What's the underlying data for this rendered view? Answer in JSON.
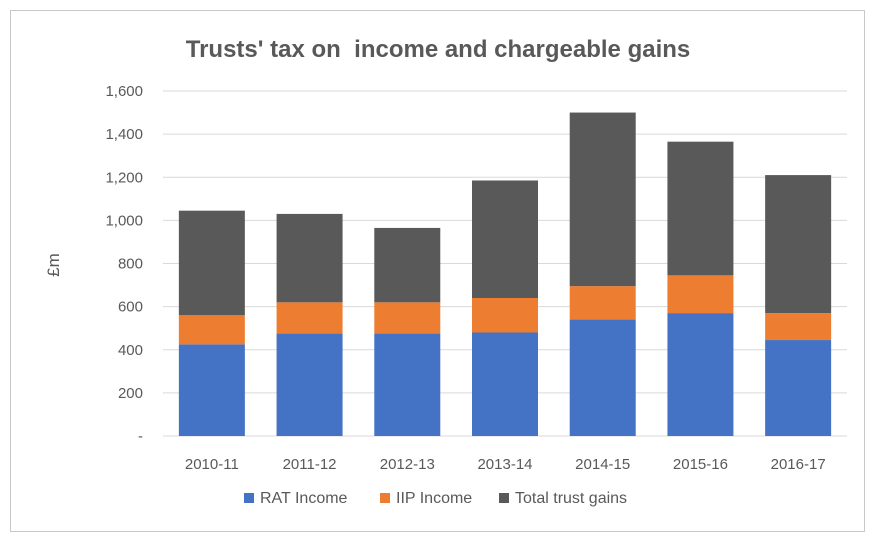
{
  "chart_data": {
    "type": "bar",
    "stacked": true,
    "title": "Trusts' tax on  income and chargeable gains",
    "xlabel": "",
    "ylabel": "£m",
    "ylim": [
      0,
      1600
    ],
    "ytick_values": [
      0,
      200,
      400,
      600,
      800,
      1000,
      1200,
      1400,
      1600
    ],
    "ytick_labels": [
      "-",
      "200",
      "400",
      "600",
      "800",
      "1,000",
      "1,200",
      "1,400",
      "1,600"
    ],
    "grid": true,
    "legend_position": "bottom",
    "categories": [
      "2010-11",
      "2011-12",
      "2012-13",
      "2013-14",
      "2014-15",
      "2015-16",
      "2016-17"
    ],
    "series": [
      {
        "name": "RAT Income",
        "color": "#4472c4",
        "values": [
          425,
          475,
          475,
          480,
          540,
          570,
          445
        ]
      },
      {
        "name": "IIP Income",
        "color": "#ed7d31",
        "values": [
          135,
          145,
          145,
          160,
          155,
          175,
          125
        ]
      },
      {
        "name": "Total trust gains",
        "color": "#595959",
        "values": [
          485,
          410,
          345,
          545,
          805,
          620,
          640
        ]
      }
    ]
  }
}
